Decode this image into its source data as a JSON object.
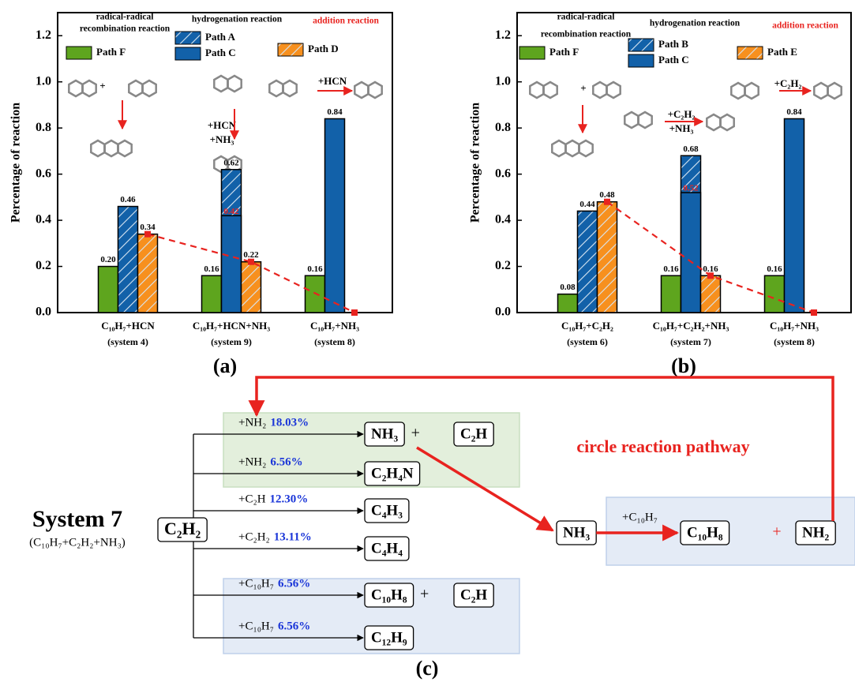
{
  "chart_data": [
    {
      "type": "bar",
      "panel_label": "(a)",
      "ylabel": "Percentage of reaction",
      "categories": [
        "C₁₀H₇+HCN",
        "C₁₀H₇+HCN+NH₃",
        "C₁₀H₇+NH₃"
      ],
      "systems": [
        "(system 4)",
        "(system 9)",
        "(system 8)"
      ],
      "ylim": [
        0,
        1.3
      ],
      "yticks": [
        {
          "value": 0,
          "label": "0.0"
        },
        0.2,
        0.4,
        0.6,
        0.8,
        {
          "value": 1,
          "label": "1.0"
        },
        1.2
      ],
      "headers": [
        {
          "text": "radical-radical"
        },
        {
          "text": "recombination reaction"
        },
        {
          "text": "hydrogenation reaction"
        },
        {
          "text": "addition reaction",
          "color": "#e8231f"
        }
      ],
      "reactions": [
        "+",
        "+HCN",
        "+NH₃",
        "+HCN"
      ],
      "series": [
        {
          "name": "Path F",
          "color": "#5ea51e",
          "values": [
            0.2,
            0.16,
            0.16
          ],
          "value_labels": [
            "0.20",
            "0.16",
            "0.16"
          ]
        },
        {
          "name": "Path A",
          "color": "#1261a9",
          "hatch": true,
          "values": [
            0.46,
            0.62,
            null
          ],
          "value_labels": [
            "0.46",
            "0.62",
            null
          ]
        },
        {
          "name": "Path C",
          "color": "#1261a9",
          "values": [
            null,
            0.42,
            0.84
          ],
          "value_labels": [
            null,
            "0.42",
            "0.84"
          ]
        },
        {
          "name": "Path D",
          "color": "#f7901e",
          "hatch": true,
          "values": [
            0.34,
            0.22,
            0
          ],
          "value_labels": [
            "0.34",
            "0.22",
            null
          ],
          "trend_color": "#e8231f"
        }
      ]
    },
    {
      "type": "bar",
      "panel_label": "(b)",
      "ylabel": "Percentage of reaction",
      "categories": [
        "C₁₀H₇+C₂H₂",
        "C₁₀H₇+C₂H₂+NH₃",
        "C₁₀H₇+NH₃"
      ],
      "systems": [
        "(system 6)",
        "(system 7)",
        "(system 8)"
      ],
      "ylim": [
        0,
        1.3
      ],
      "yticks": [
        {
          "value": 0,
          "label": "0.0"
        },
        0.2,
        0.4,
        0.6,
        0.8,
        {
          "value": 1,
          "label": "1.0"
        },
        1.2
      ],
      "headers": [
        {
          "text": "radical-radical"
        },
        {
          "text": "recombination reaction"
        },
        {
          "text": "hydrogenation reaction"
        },
        {
          "text": "addition reaction",
          "color": "#e8231f"
        }
      ],
      "reactions": [
        "+",
        "+C₂H₂",
        "+NH₃",
        "+C₂H₂"
      ],
      "series": [
        {
          "name": "Path F",
          "color": "#5ea51e",
          "values": [
            0.08,
            0.16,
            0.16
          ],
          "value_labels": [
            "0.08",
            "0.16",
            "0.16"
          ]
        },
        {
          "name": "Path B",
          "color": "#1261a9",
          "hatch": true,
          "values": [
            0.44,
            0.68,
            null
          ],
          "value_labels": [
            "0.44",
            "0.68",
            null
          ]
        },
        {
          "name": "Path C",
          "color": "#1261a9",
          "values": [
            null,
            0.52,
            0.84
          ],
          "value_labels": [
            null,
            "0.52",
            "0.84"
          ]
        },
        {
          "name": "Path E",
          "color": "#f7901e",
          "hatch": true,
          "values": [
            0.48,
            0.16,
            0
          ],
          "value_labels": [
            "0.48",
            "0.16",
            null
          ],
          "trend_color": "#e8231f"
        }
      ]
    }
  ],
  "diagram": {
    "panel_label": "(c)",
    "system_title": "System 7",
    "system_formula": "(C₁₀H₇+C₂H₂+NH₃)",
    "source": "C₂H₂",
    "join": "+",
    "branches": [
      {
        "reagent": "+NH₂",
        "percent": "18.03%",
        "products": [
          "NH₃",
          "C₂H"
        ]
      },
      {
        "reagent": "+NH₂",
        "percent": "6.56%",
        "products": [
          "C₂H₄N"
        ]
      },
      {
        "reagent": "+C₂H",
        "percent": "12.30%",
        "products": [
          "C₄H₃"
        ]
      },
      {
        "reagent": "+C₂H₂",
        "percent": "13.11%",
        "products": [
          "C₄H₄"
        ]
      },
      {
        "reagent": "+C₁₀H₇",
        "percent": "6.56%",
        "products": [
          "C₁₀H₈",
          "C₂H"
        ]
      },
      {
        "reagent": "+C₁₀H₇",
        "percent": "6.56%",
        "products": [
          "C₁₂H₉"
        ]
      }
    ],
    "cycle": {
      "title": "circle reaction pathway",
      "reactant": "NH₃",
      "reagent": "+C₁₀H₇",
      "products": [
        "C₁₀H₈",
        "NH₂"
      ]
    }
  }
}
